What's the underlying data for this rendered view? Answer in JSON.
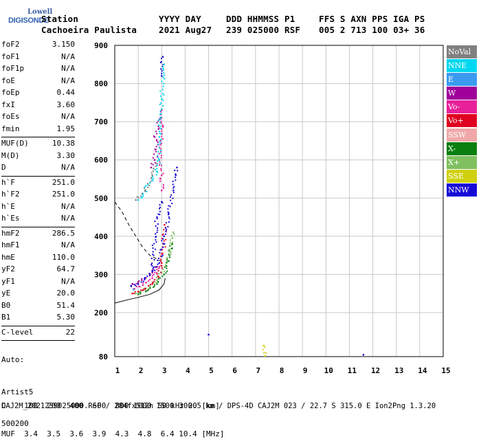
{
  "logo": {
    "line1": "Lowell",
    "line2": "DIGISONDE"
  },
  "header": {
    "row1": [
      "Station",
      "YYYY DAY",
      "DDD HHMMSS P1",
      "FFS S AXN PPS IGA PS"
    ],
    "row2": [
      "Cachoeira Paulista",
      "2021 Aug27",
      "239 025000 RSF",
      "005 2 713 100 03+ 36"
    ]
  },
  "parameters": [
    {
      "name": "foF2",
      "value": "3.150"
    },
    {
      "name": "foF1",
      "value": "N/A"
    },
    {
      "name": "foF1p",
      "value": "N/A"
    },
    {
      "name": "foE",
      "value": "N/A"
    },
    {
      "name": "foEp",
      "value": "0.44"
    },
    {
      "name": "fxI",
      "value": "3.60"
    },
    {
      "name": "foEs",
      "value": "N/A"
    },
    {
      "name": "fmin",
      "value": "1.95"
    },
    {
      "sep": true
    },
    {
      "name": "MUF(D)",
      "value": "10.38"
    },
    {
      "name": "M(D)",
      "value": "3.30"
    },
    {
      "name": "D",
      "value": "N/A"
    },
    {
      "sep": true
    },
    {
      "name": "h`F",
      "value": "251.0"
    },
    {
      "name": "h`F2",
      "value": "251.0"
    },
    {
      "name": "h`E",
      "value": "N/A"
    },
    {
      "name": "h`Es",
      "value": "N/A"
    },
    {
      "sep": true
    },
    {
      "name": "hmF2",
      "value": "286.5"
    },
    {
      "name": "hmF1",
      "value": "N/A"
    },
    {
      "name": "hmE",
      "value": "110.0"
    },
    {
      "name": "yF2",
      "value": "64.7"
    },
    {
      "name": "yF1",
      "value": "N/A"
    },
    {
      "name": "yE",
      "value": "20.0"
    },
    {
      "name": "B0",
      "value": "51.4"
    },
    {
      "name": "B1",
      "value": "5.30"
    },
    {
      "sep": true
    },
    {
      "name": "C-level",
      "value": "22"
    },
    {
      "sep": true
    }
  ],
  "auto": {
    "line1": "Auto:",
    "line2": "Artist5",
    "line3": "500200"
  },
  "legend": [
    {
      "label": "NoVal",
      "color": "#808080"
    },
    {
      "label": "NNE",
      "color": "#00d8f0"
    },
    {
      "label": "E",
      "color": "#3a9af0"
    },
    {
      "label": "W",
      "color": "#a0009a"
    },
    {
      "label": "Vo-",
      "color": "#e8209a"
    },
    {
      "label": "Vo+",
      "color": "#e00020"
    },
    {
      "label": "SSW",
      "color": "#f0a8a8"
    },
    {
      "label": "X-",
      "color": "#0a8010"
    },
    {
      "label": "X+",
      "color": "#80c060"
    },
    {
      "label": "SSE",
      "color": "#d0d010"
    },
    {
      "label": "NNW",
      "color": "#1808d8"
    }
  ],
  "freq_table": {
    "row1": "D    100  200  400  600  800 1000 1500 3000 [km]",
    "row2": "MUF  3.4  3.5  3.6  3.9  4.3  4.8  6.4 10.4 [MHz]"
  },
  "footer": "CAJ2M_2021239025000.RSF / 284fx512h 50 kHz 2.5 km / DPS-4D CAJ2M 023 / 22.7 S 315.0 E Ion2Png 1.3.20",
  "chart_data": {
    "type": "scatter",
    "xlim": [
      1,
      15
    ],
    "ylim": [
      80,
      900
    ],
    "xticks": [
      "1",
      "2",
      "3",
      "4",
      "5",
      "6",
      "7",
      "8",
      "9",
      "10",
      "11",
      "12",
      "13",
      "14",
      "15"
    ],
    "yticks": [
      "900",
      "800",
      "700",
      "600",
      "500",
      "400",
      "300",
      "200",
      "80"
    ],
    "grid": true,
    "series": [
      {
        "name": "X+",
        "color": "#80c060",
        "points": [
          [
            1.9,
            250
          ],
          [
            2.2,
            258
          ],
          [
            2.5,
            268
          ],
          [
            2.8,
            285
          ],
          [
            3.0,
            305
          ],
          [
            3.2,
            330
          ],
          [
            3.35,
            360
          ],
          [
            3.45,
            395
          ],
          [
            3.5,
            410
          ]
        ]
      },
      {
        "name": "X-",
        "color": "#0a8010",
        "points": [
          [
            2.0,
            248
          ],
          [
            2.4,
            258
          ],
          [
            2.8,
            275
          ],
          [
            3.1,
            300
          ],
          [
            3.3,
            335
          ],
          [
            3.45,
            380
          ]
        ]
      },
      {
        "name": "Vo+",
        "color": "#e00020",
        "points": [
          [
            1.75,
            250
          ],
          [
            2.0,
            255
          ],
          [
            2.3,
            262
          ],
          [
            2.6,
            275
          ],
          [
            2.85,
            295
          ],
          [
            3.0,
            330
          ],
          [
            3.08,
            380
          ],
          [
            3.12,
            430
          ]
        ]
      },
      {
        "name": "Vo-",
        "color": "#e8209a",
        "points": [
          [
            1.8,
            262
          ],
          [
            2.2,
            272
          ],
          [
            2.6,
            290
          ],
          [
            2.9,
            320
          ],
          [
            3.0,
            520
          ],
          [
            3.0,
            560
          ],
          [
            2.9,
            600
          ],
          [
            2.95,
            650
          ],
          [
            3.05,
            690
          ],
          [
            3.0,
            730
          ]
        ]
      },
      {
        "name": "W",
        "color": "#a0009a",
        "points": [
          [
            1.75,
            275
          ],
          [
            2.0,
            280
          ],
          [
            2.3,
            290
          ],
          [
            2.6,
            305
          ],
          [
            2.8,
            320
          ],
          [
            2.55,
            580
          ],
          [
            2.7,
            600
          ],
          [
            2.85,
            640
          ],
          [
            2.7,
            660
          ],
          [
            2.95,
            710
          ]
        ]
      },
      {
        "name": "NNW",
        "color": "#1808d8",
        "points": [
          [
            1.7,
            270
          ],
          [
            2.0,
            275
          ],
          [
            2.5,
            300
          ],
          [
            2.9,
            330
          ],
          [
            3.1,
            400
          ],
          [
            3.3,
            460
          ],
          [
            3.5,
            520
          ],
          [
            3.6,
            560
          ],
          [
            3.65,
            580
          ],
          [
            2.6,
            310
          ],
          [
            2.8,
            450
          ],
          [
            3.0,
            490
          ],
          [
            3.0,
            820
          ],
          [
            3.05,
            870
          ],
          [
            5.0,
            140
          ],
          [
            11.6,
            85
          ]
        ]
      },
      {
        "name": "NNE",
        "color": "#00d8f0",
        "points": [
          [
            1.8,
            260
          ],
          [
            2.0,
            495
          ],
          [
            2.2,
            510
          ],
          [
            2.5,
            540
          ],
          [
            2.8,
            570
          ],
          [
            2.9,
            600
          ],
          [
            2.9,
            660
          ],
          [
            3.0,
            760
          ],
          [
            3.1,
            850
          ]
        ]
      },
      {
        "name": "NoVal",
        "color": "#808080",
        "points": [
          [
            1.9,
            495
          ],
          [
            2.3,
            520
          ],
          [
            2.6,
            560
          ],
          [
            2.8,
            590
          ]
        ]
      },
      {
        "name": "SSE",
        "color": "#d0d010",
        "points": [
          [
            7.35,
            110
          ],
          [
            7.4,
            82
          ]
        ]
      }
    ],
    "profile_curve": {
      "points": [
        [
          1.0,
          225
        ],
        [
          1.5,
          233
        ],
        [
          2.0,
          240
        ],
        [
          2.5,
          248
        ],
        [
          2.9,
          260
        ],
        [
          3.1,
          275
        ],
        [
          3.15,
          290
        ]
      ]
    },
    "dashed_curve": {
      "points": [
        [
          1.0,
          490
        ],
        [
          1.3,
          465
        ],
        [
          1.6,
          430
        ],
        [
          1.9,
          400
        ],
        [
          2.2,
          370
        ],
        [
          2.5,
          350
        ],
        [
          2.75,
          342
        ],
        [
          2.95,
          335
        ]
      ]
    }
  }
}
